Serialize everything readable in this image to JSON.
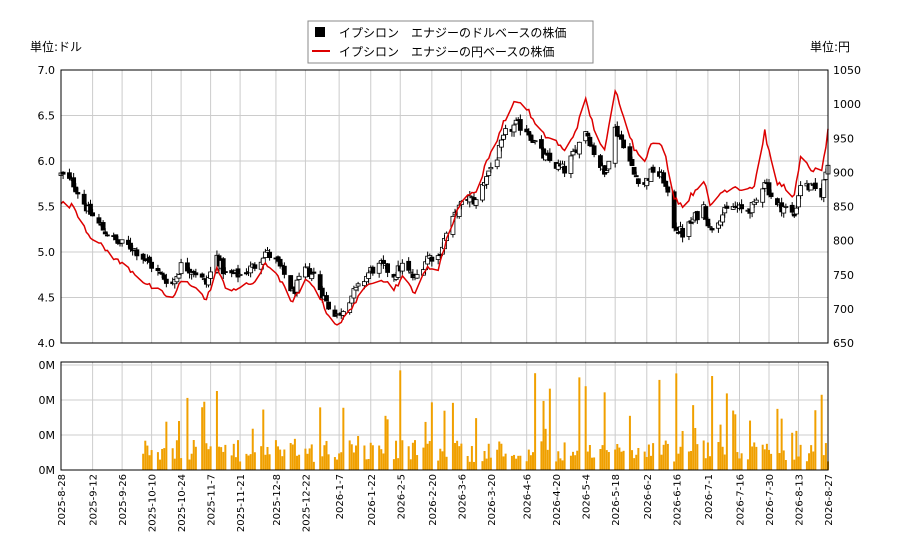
{
  "chart_data": {
    "type": "candlestick",
    "title": "",
    "legend": {
      "placement": "top-center",
      "entries": [
        {
          "marker": "black-square",
          "label": "イプシロン　エナジーのドルベースの株価"
        },
        {
          "marker": "red-line",
          "label": "イプシロン　エナジーの円ベースの株価"
        }
      ]
    },
    "price_axis_left": {
      "unit_label": "単位:ドル",
      "range": [
        4.0,
        7.0
      ],
      "ticks": [
        "4.0",
        "4.5",
        "5.0",
        "5.5",
        "6.0",
        "6.5",
        "7.0"
      ]
    },
    "price_axis_right": {
      "unit_label": "単位:円",
      "range": [
        650,
        1050
      ],
      "ticks": [
        "650",
        "700",
        "750",
        "800",
        "850",
        "900",
        "950",
        "1000",
        "1050"
      ]
    },
    "volume_axis": {
      "ticks": [
        "0M",
        "0M",
        "0M",
        "0M"
      ]
    },
    "x_axis": {
      "start": "2025-08-28",
      "end": "2026-08-27",
      "tick_labels": [
        "2025-8-28",
        "2025-9-12",
        "2025-9-26",
        "2025-10-10",
        "2025-10-24",
        "2025-11-7",
        "2025-11-21",
        "2025-12-8",
        "2025-12-22",
        "2026-1-7",
        "2026-1-22",
        "2026-2-5",
        "2026-2-20",
        "2026-3-6",
        "2026-3-20",
        "2026-4-6",
        "2026-4-20",
        "2026-5-4",
        "2026-5-18",
        "2026-6-2",
        "2026-6-16",
        "2026-7-1",
        "2026-7-16",
        "2026-7-30",
        "2026-8-13",
        "2026-8-27"
      ]
    },
    "grid": true,
    "colors": {
      "usd_series": "#000000",
      "jpy_series": "#dd0000",
      "volume": "#f0a000",
      "grid": "#cccccc"
    },
    "usd_close_keypoints": [
      [
        "2025-08-28",
        5.85
      ],
      [
        "2025-09-03",
        5.75
      ],
      [
        "2025-09-10",
        5.45
      ],
      [
        "2025-09-17",
        5.25
      ],
      [
        "2025-09-24",
        5.1
      ],
      [
        "2025-10-01",
        5.05
      ],
      [
        "2025-10-08",
        4.9
      ],
      [
        "2025-10-14",
        4.75
      ],
      [
        "2025-10-20",
        4.65
      ],
      [
        "2025-10-24",
        4.85
      ],
      [
        "2025-10-30",
        4.8
      ],
      [
        "2025-11-05",
        4.65
      ],
      [
        "2025-11-10",
        4.95
      ],
      [
        "2025-11-14",
        4.75
      ],
      [
        "2025-11-21",
        4.75
      ],
      [
        "2025-11-28",
        4.85
      ],
      [
        "2025-12-03",
        5.0
      ],
      [
        "2025-12-08",
        4.9
      ],
      [
        "2025-12-12",
        4.75
      ],
      [
        "2025-12-16",
        4.55
      ],
      [
        "2025-12-22",
        4.8
      ],
      [
        "2025-12-26",
        4.75
      ],
      [
        "2026-01-02",
        4.4
      ],
      [
        "2026-01-07",
        4.3
      ],
      [
        "2026-01-12",
        4.5
      ],
      [
        "2026-01-16",
        4.6
      ],
      [
        "2026-01-22",
        4.8
      ],
      [
        "2026-01-27",
        4.85
      ],
      [
        "2026-02-02",
        4.75
      ],
      [
        "2026-02-06",
        4.85
      ],
      [
        "2026-02-12",
        4.7
      ],
      [
        "2026-02-18",
        4.95
      ],
      [
        "2026-02-23",
        4.95
      ],
      [
        "2026-02-27",
        5.2
      ],
      [
        "2026-03-04",
        5.45
      ],
      [
        "2026-03-09",
        5.6
      ],
      [
        "2026-03-13",
        5.55
      ],
      [
        "2026-03-18",
        5.85
      ],
      [
        "2026-03-23",
        6.05
      ],
      [
        "2026-03-27",
        6.3
      ],
      [
        "2026-04-01",
        6.4
      ],
      [
        "2026-04-06",
        6.35
      ],
      [
        "2026-04-10",
        6.2
      ],
      [
        "2026-04-14",
        6.05
      ],
      [
        "2026-04-20",
        5.95
      ],
      [
        "2026-04-24",
        5.9
      ],
      [
        "2026-04-29",
        6.1
      ],
      [
        "2026-05-04",
        6.35
      ],
      [
        "2026-05-08",
        6.1
      ],
      [
        "2026-05-13",
        5.85
      ],
      [
        "2026-05-18",
        6.35
      ],
      [
        "2026-05-22",
        6.2
      ],
      [
        "2026-05-27",
        5.85
      ],
      [
        "2026-06-01",
        5.75
      ],
      [
        "2026-06-05",
        5.9
      ],
      [
        "2026-06-10",
        5.8
      ],
      [
        "2026-06-15",
        5.3
      ],
      [
        "2026-06-19",
        5.2
      ],
      [
        "2026-06-24",
        5.35
      ],
      [
        "2026-06-29",
        5.5
      ],
      [
        "2026-07-02",
        5.25
      ],
      [
        "2026-07-07",
        5.4
      ],
      [
        "2026-07-13",
        5.5
      ],
      [
        "2026-07-18",
        5.45
      ],
      [
        "2026-07-23",
        5.5
      ],
      [
        "2026-07-28",
        5.8
      ],
      [
        "2026-08-02",
        5.5
      ],
      [
        "2026-08-06",
        5.5
      ],
      [
        "2026-08-11",
        5.4
      ],
      [
        "2026-08-14",
        5.75
      ],
      [
        "2026-08-19",
        5.7
      ],
      [
        "2026-08-24",
        5.65
      ],
      [
        "2026-08-27",
        6.0
      ]
    ],
    "jpy_close_keypoints": [
      [
        "2025-08-28",
        855
      ],
      [
        "2025-09-03",
        850
      ],
      [
        "2025-09-10",
        810
      ],
      [
        "2025-09-17",
        790
      ],
      [
        "2025-09-24",
        770
      ],
      [
        "2025-10-01",
        755
      ],
      [
        "2025-10-08",
        735
      ],
      [
        "2025-10-14",
        725
      ],
      [
        "2025-10-20",
        715
      ],
      [
        "2025-10-24",
        740
      ],
      [
        "2025-10-30",
        735
      ],
      [
        "2025-11-05",
        712
      ],
      [
        "2025-11-10",
        760
      ],
      [
        "2025-11-14",
        730
      ],
      [
        "2025-11-21",
        730
      ],
      [
        "2025-11-28",
        740
      ],
      [
        "2025-12-03",
        765
      ],
      [
        "2025-12-08",
        755
      ],
      [
        "2025-12-12",
        730
      ],
      [
        "2025-12-16",
        710
      ],
      [
        "2025-12-22",
        740
      ],
      [
        "2025-12-26",
        735
      ],
      [
        "2026-01-02",
        690
      ],
      [
        "2026-01-07",
        675
      ],
      [
        "2026-01-12",
        700
      ],
      [
        "2026-01-16",
        715
      ],
      [
        "2026-01-22",
        740
      ],
      [
        "2026-01-27",
        745
      ],
      [
        "2026-02-02",
        730
      ],
      [
        "2026-02-06",
        745
      ],
      [
        "2026-02-12",
        725
      ],
      [
        "2026-02-18",
        760
      ],
      [
        "2026-02-23",
        760
      ],
      [
        "2026-02-27",
        800
      ],
      [
        "2026-03-04",
        845
      ],
      [
        "2026-03-09",
        870
      ],
      [
        "2026-03-13",
        870
      ],
      [
        "2026-03-18",
        915
      ],
      [
        "2026-03-23",
        950
      ],
      [
        "2026-03-27",
        980
      ],
      [
        "2026-04-01",
        1005
      ],
      [
        "2026-04-06",
        995
      ],
      [
        "2026-04-10",
        970
      ],
      [
        "2026-04-14",
        955
      ],
      [
        "2026-04-20",
        945
      ],
      [
        "2026-04-24",
        930
      ],
      [
        "2026-04-29",
        960
      ],
      [
        "2026-05-04",
        1005
      ],
      [
        "2026-05-08",
        965
      ],
      [
        "2026-05-13",
        930
      ],
      [
        "2026-05-18",
        1020
      ],
      [
        "2026-05-22",
        985
      ],
      [
        "2026-05-27",
        935
      ],
      [
        "2026-06-01",
        920
      ],
      [
        "2026-06-05",
        945
      ],
      [
        "2026-06-10",
        935
      ],
      [
        "2026-06-15",
        865
      ],
      [
        "2026-06-19",
        850
      ],
      [
        "2026-06-24",
        870
      ],
      [
        "2026-06-29",
        890
      ],
      [
        "2026-07-02",
        850
      ],
      [
        "2026-07-07",
        870
      ],
      [
        "2026-07-13",
        880
      ],
      [
        "2026-07-18",
        875
      ],
      [
        "2026-07-23",
        880
      ],
      [
        "2026-07-28",
        960
      ],
      [
        "2026-08-02",
        885
      ],
      [
        "2026-08-06",
        880
      ],
      [
        "2026-08-11",
        865
      ],
      [
        "2026-08-14",
        920
      ],
      [
        "2026-08-19",
        905
      ],
      [
        "2026-08-24",
        900
      ],
      [
        "2026-08-27",
        960
      ]
    ],
    "volume_start": "2025-10-06"
  }
}
